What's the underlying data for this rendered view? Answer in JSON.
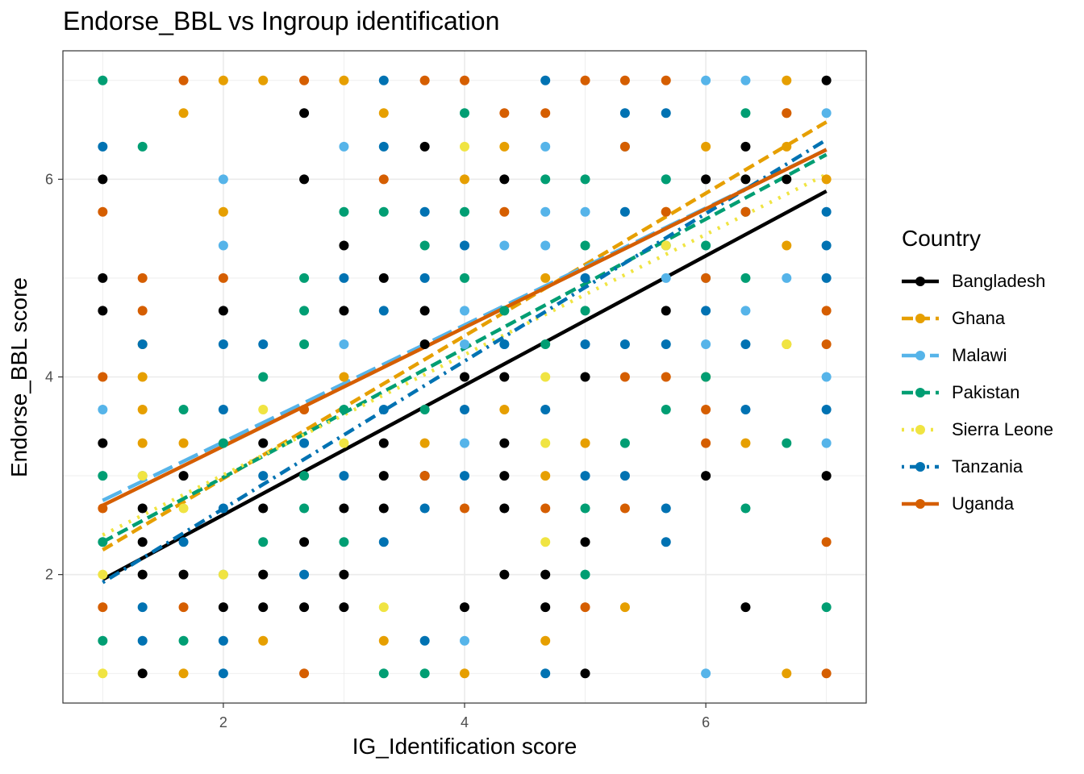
{
  "chart_data": {
    "type": "scatter",
    "title": "Endorse_BBL vs Ingroup identification",
    "xlabel": "IG_Identification score",
    "ylabel": "Endorse_BBL score",
    "xlim": [
      0.67,
      7.33
    ],
    "ylim": [
      0.7,
      7.3
    ],
    "xticks": [
      "2",
      "4",
      "6"
    ],
    "yticks": [
      "2",
      "4",
      "6"
    ],
    "grid": true,
    "legend": {
      "title": "Country",
      "position": "right"
    },
    "series": [
      {
        "name": "Bangladesh",
        "color": "#000000",
        "linestyle": "solid",
        "fit": {
          "x": [
            1,
            7
          ],
          "y": [
            1.95,
            5.88
          ]
        },
        "points": [
          [
            1,
            6
          ],
          [
            1,
            5
          ],
          [
            1,
            4.67
          ],
          [
            1,
            3.33
          ],
          [
            1.33,
            2.67
          ],
          [
            1.33,
            2.33
          ],
          [
            1.33,
            2
          ],
          [
            1.33,
            1
          ],
          [
            1.67,
            3
          ],
          [
            1.67,
            2
          ],
          [
            2,
            4.67
          ],
          [
            2,
            1.67
          ],
          [
            2.33,
            3.33
          ],
          [
            2.33,
            2.67
          ],
          [
            2.33,
            2
          ],
          [
            2.33,
            1.67
          ],
          [
            2.67,
            6.67
          ],
          [
            2.67,
            6
          ],
          [
            2.67,
            2.33
          ],
          [
            2.67,
            1.67
          ],
          [
            3,
            5.33
          ],
          [
            3,
            4.67
          ],
          [
            3,
            2.67
          ],
          [
            3,
            2
          ],
          [
            3,
            1.67
          ],
          [
            3.33,
            5
          ],
          [
            3.33,
            3.33
          ],
          [
            3.33,
            3
          ],
          [
            3.33,
            2.67
          ],
          [
            3.67,
            6.33
          ],
          [
            3.67,
            4.67
          ],
          [
            3.67,
            4.33
          ],
          [
            3.67,
            3
          ],
          [
            4,
            4
          ],
          [
            4,
            1.67
          ],
          [
            4.33,
            6
          ],
          [
            4.33,
            4
          ],
          [
            4.33,
            3.33
          ],
          [
            4.33,
            3
          ],
          [
            4.33,
            2.67
          ],
          [
            4.33,
            2
          ],
          [
            4.67,
            2
          ],
          [
            4.67,
            1.67
          ],
          [
            5,
            4
          ],
          [
            5,
            2.33
          ],
          [
            5,
            1
          ],
          [
            5.67,
            4.67
          ],
          [
            6,
            6
          ],
          [
            6,
            3
          ],
          [
            6.33,
            6.33
          ],
          [
            6.33,
            6
          ],
          [
            6.33,
            1.67
          ],
          [
            6.67,
            6
          ],
          [
            7,
            7
          ],
          [
            7,
            3
          ]
        ]
      },
      {
        "name": "Ghana",
        "color": "#E69F00",
        "linestyle": "dashed",
        "fit": {
          "x": [
            1,
            7
          ],
          "y": [
            2.25,
            6.58
          ]
        },
        "points": [
          [
            1.33,
            4.33
          ],
          [
            1.33,
            4
          ],
          [
            1.33,
            3.67
          ],
          [
            1.33,
            3.33
          ],
          [
            1.67,
            6.67
          ],
          [
            1.67,
            3.33
          ],
          [
            1.67,
            1
          ],
          [
            2,
            7
          ],
          [
            2,
            5.67
          ],
          [
            2.33,
            7
          ],
          [
            2.33,
            1.33
          ],
          [
            3,
            7
          ],
          [
            3,
            4
          ],
          [
            3.33,
            6.67
          ],
          [
            3.33,
            1.33
          ],
          [
            3.67,
            3.33
          ],
          [
            4,
            6
          ],
          [
            4,
            1
          ],
          [
            4.33,
            6.33
          ],
          [
            4.33,
            3.67
          ],
          [
            4.67,
            5
          ],
          [
            4.67,
            3
          ],
          [
            4.67,
            1.33
          ],
          [
            5,
            3.33
          ],
          [
            5.33,
            1.67
          ],
          [
            5.67,
            5.67
          ],
          [
            6,
            6.33
          ],
          [
            6,
            4
          ],
          [
            6.33,
            3.33
          ],
          [
            6.67,
            7
          ],
          [
            6.67,
            6.67
          ],
          [
            6.67,
            6.33
          ],
          [
            6.67,
            5.33
          ],
          [
            6.67,
            4.33
          ],
          [
            6.67,
            1
          ],
          [
            7,
            6
          ]
        ]
      },
      {
        "name": "Malawi",
        "color": "#56B4E9",
        "linestyle": "longdash",
        "fit": {
          "x": [
            1,
            7
          ],
          "y": [
            2.75,
            6.3
          ]
        },
        "points": [
          [
            1,
            3.67
          ],
          [
            1.33,
            3
          ],
          [
            2,
            6
          ],
          [
            2,
            5.33
          ],
          [
            2,
            2
          ],
          [
            3,
            6.33
          ],
          [
            3,
            4.33
          ],
          [
            4,
            4.67
          ],
          [
            4,
            4.33
          ],
          [
            4,
            3.33
          ],
          [
            4,
            1.33
          ],
          [
            4.33,
            5.33
          ],
          [
            4.33,
            4.33
          ],
          [
            4.67,
            6.33
          ],
          [
            4.67,
            5.67
          ],
          [
            4.67,
            5.33
          ],
          [
            5,
            5.67
          ],
          [
            5.33,
            6.33
          ],
          [
            5.67,
            6
          ],
          [
            5.67,
            5
          ],
          [
            6,
            7
          ],
          [
            6,
            5
          ],
          [
            6,
            4.33
          ],
          [
            6,
            1
          ],
          [
            6.33,
            7
          ],
          [
            6.33,
            4.67
          ],
          [
            6.67,
            5
          ],
          [
            7,
            6.67
          ],
          [
            7,
            4
          ],
          [
            7,
            3.33
          ],
          [
            4,
            5.33
          ]
        ]
      },
      {
        "name": "Pakistan",
        "color": "#009E73",
        "linestyle": "dashed",
        "fit": {
          "x": [
            1,
            7
          ],
          "y": [
            2.33,
            6.25
          ]
        },
        "points": [
          [
            1,
            7
          ],
          [
            1,
            3
          ],
          [
            1,
            2.33
          ],
          [
            1,
            1.33
          ],
          [
            1.33,
            6.33
          ],
          [
            1.67,
            3.67
          ],
          [
            1.67,
            1.33
          ],
          [
            2,
            3.33
          ],
          [
            2.33,
            4
          ],
          [
            2.33,
            2.33
          ],
          [
            2.67,
            5
          ],
          [
            2.67,
            4.67
          ],
          [
            2.67,
            4.33
          ],
          [
            2.67,
            3
          ],
          [
            2.67,
            2.67
          ],
          [
            3,
            5.67
          ],
          [
            3,
            3.67
          ],
          [
            3,
            2.33
          ],
          [
            3.33,
            5.67
          ],
          [
            3.33,
            1
          ],
          [
            3.67,
            5.33
          ],
          [
            3.67,
            3.67
          ],
          [
            3.67,
            1
          ],
          [
            4,
            6.67
          ],
          [
            4,
            5.67
          ],
          [
            4,
            5
          ],
          [
            4.33,
            4.67
          ],
          [
            4.67,
            6
          ],
          [
            4.67,
            4.33
          ],
          [
            5,
            6
          ],
          [
            5,
            5.33
          ],
          [
            5,
            4.67
          ],
          [
            5,
            2.67
          ],
          [
            5,
            2
          ],
          [
            5.33,
            3.33
          ],
          [
            5.67,
            6
          ],
          [
            5.67,
            5.33
          ],
          [
            5.67,
            3.67
          ],
          [
            6,
            5.33
          ],
          [
            6,
            4
          ],
          [
            6.33,
            6.67
          ],
          [
            6.33,
            5
          ],
          [
            6.33,
            2.67
          ],
          [
            6.67,
            3.33
          ],
          [
            7,
            1.67
          ]
        ]
      },
      {
        "name": "Sierra Leone",
        "color": "#F0E442",
        "linestyle": "dotted",
        "fit": {
          "x": [
            1,
            7
          ],
          "y": [
            2.4,
            6.05
          ]
        },
        "points": [
          [
            1,
            1
          ],
          [
            1.33,
            3
          ],
          [
            1.67,
            2.67
          ],
          [
            2.33,
            3.67
          ],
          [
            3,
            3.33
          ],
          [
            3.33,
            1.67
          ],
          [
            4,
            6.33
          ],
          [
            4.67,
            4
          ],
          [
            4.67,
            3.33
          ],
          [
            4.67,
            2.33
          ],
          [
            5.67,
            5.33
          ],
          [
            6.67,
            4.33
          ],
          [
            1,
            2
          ],
          [
            2,
            2
          ]
        ]
      },
      {
        "name": "Tanzania",
        "color": "#0072B2",
        "linestyle": "dotdash",
        "fit": {
          "x": [
            1,
            7
          ],
          "y": [
            1.92,
            6.4
          ]
        },
        "points": [
          [
            1,
            6.33
          ],
          [
            1.33,
            4.33
          ],
          [
            1.33,
            1.67
          ],
          [
            1.33,
            1.33
          ],
          [
            1.67,
            2.33
          ],
          [
            2,
            4.33
          ],
          [
            2,
            3.67
          ],
          [
            2,
            2.67
          ],
          [
            2,
            1.33
          ],
          [
            2,
            1
          ],
          [
            2.33,
            4.33
          ],
          [
            2.33,
            3
          ],
          [
            2.67,
            3.33
          ],
          [
            2.67,
            2
          ],
          [
            3,
            5
          ],
          [
            3,
            3
          ],
          [
            3.33,
            6.33
          ],
          [
            3.33,
            4.67
          ],
          [
            3.33,
            3.67
          ],
          [
            3.33,
            2.33
          ],
          [
            3.33,
            7
          ],
          [
            3.67,
            5.67
          ],
          [
            3.67,
            5
          ],
          [
            3.67,
            2.67
          ],
          [
            3.67,
            1.33
          ],
          [
            4,
            5.33
          ],
          [
            4,
            3.67
          ],
          [
            4,
            3
          ],
          [
            4.33,
            4.33
          ],
          [
            4.67,
            7
          ],
          [
            4.67,
            3.67
          ],
          [
            4.67,
            1
          ],
          [
            5,
            5
          ],
          [
            5,
            4.33
          ],
          [
            5,
            3
          ],
          [
            5.33,
            6.67
          ],
          [
            5.33,
            5.67
          ],
          [
            5.33,
            4.33
          ],
          [
            5.33,
            3
          ],
          [
            5.67,
            6.67
          ],
          [
            5.67,
            4.33
          ],
          [
            5.67,
            2.67
          ],
          [
            5.67,
            2.33
          ],
          [
            6,
            4.67
          ],
          [
            6.33,
            5.67
          ],
          [
            6.33,
            4.33
          ],
          [
            6.33,
            3.67
          ],
          [
            7,
            5.67
          ],
          [
            7,
            5.33
          ],
          [
            7,
            5
          ],
          [
            7,
            3.67
          ]
        ]
      },
      {
        "name": "Uganda",
        "color": "#D55E00",
        "linestyle": "solid",
        "fit": {
          "x": [
            1,
            7
          ],
          "y": [
            2.7,
            6.3
          ]
        },
        "points": [
          [
            1,
            5.67
          ],
          [
            1,
            4
          ],
          [
            1,
            2.67
          ],
          [
            1,
            1.67
          ],
          [
            1.33,
            5
          ],
          [
            1.33,
            4.67
          ],
          [
            1.67,
            7
          ],
          [
            1.67,
            1.67
          ],
          [
            2,
            5
          ],
          [
            2.67,
            3.67
          ],
          [
            2.67,
            1
          ],
          [
            2.67,
            7
          ],
          [
            3.33,
            6
          ],
          [
            3.67,
            7
          ],
          [
            3.67,
            3
          ],
          [
            4,
            7
          ],
          [
            4,
            2.67
          ],
          [
            4.33,
            6.67
          ],
          [
            4.33,
            5.67
          ],
          [
            4.67,
            6.67
          ],
          [
            4.67,
            2.67
          ],
          [
            5,
            7
          ],
          [
            5,
            1.67
          ],
          [
            5.33,
            7
          ],
          [
            5.33,
            6.33
          ],
          [
            5.33,
            4
          ],
          [
            5.33,
            2.67
          ],
          [
            5.67,
            7
          ],
          [
            5.67,
            5.67
          ],
          [
            5.67,
            4
          ],
          [
            6,
            5
          ],
          [
            6,
            3.67
          ],
          [
            6,
            3.33
          ],
          [
            6.33,
            5.67
          ],
          [
            6.67,
            6.67
          ],
          [
            7,
            4.67
          ],
          [
            7,
            4.33
          ],
          [
            7,
            2.33
          ],
          [
            7,
            1
          ]
        ]
      }
    ]
  }
}
